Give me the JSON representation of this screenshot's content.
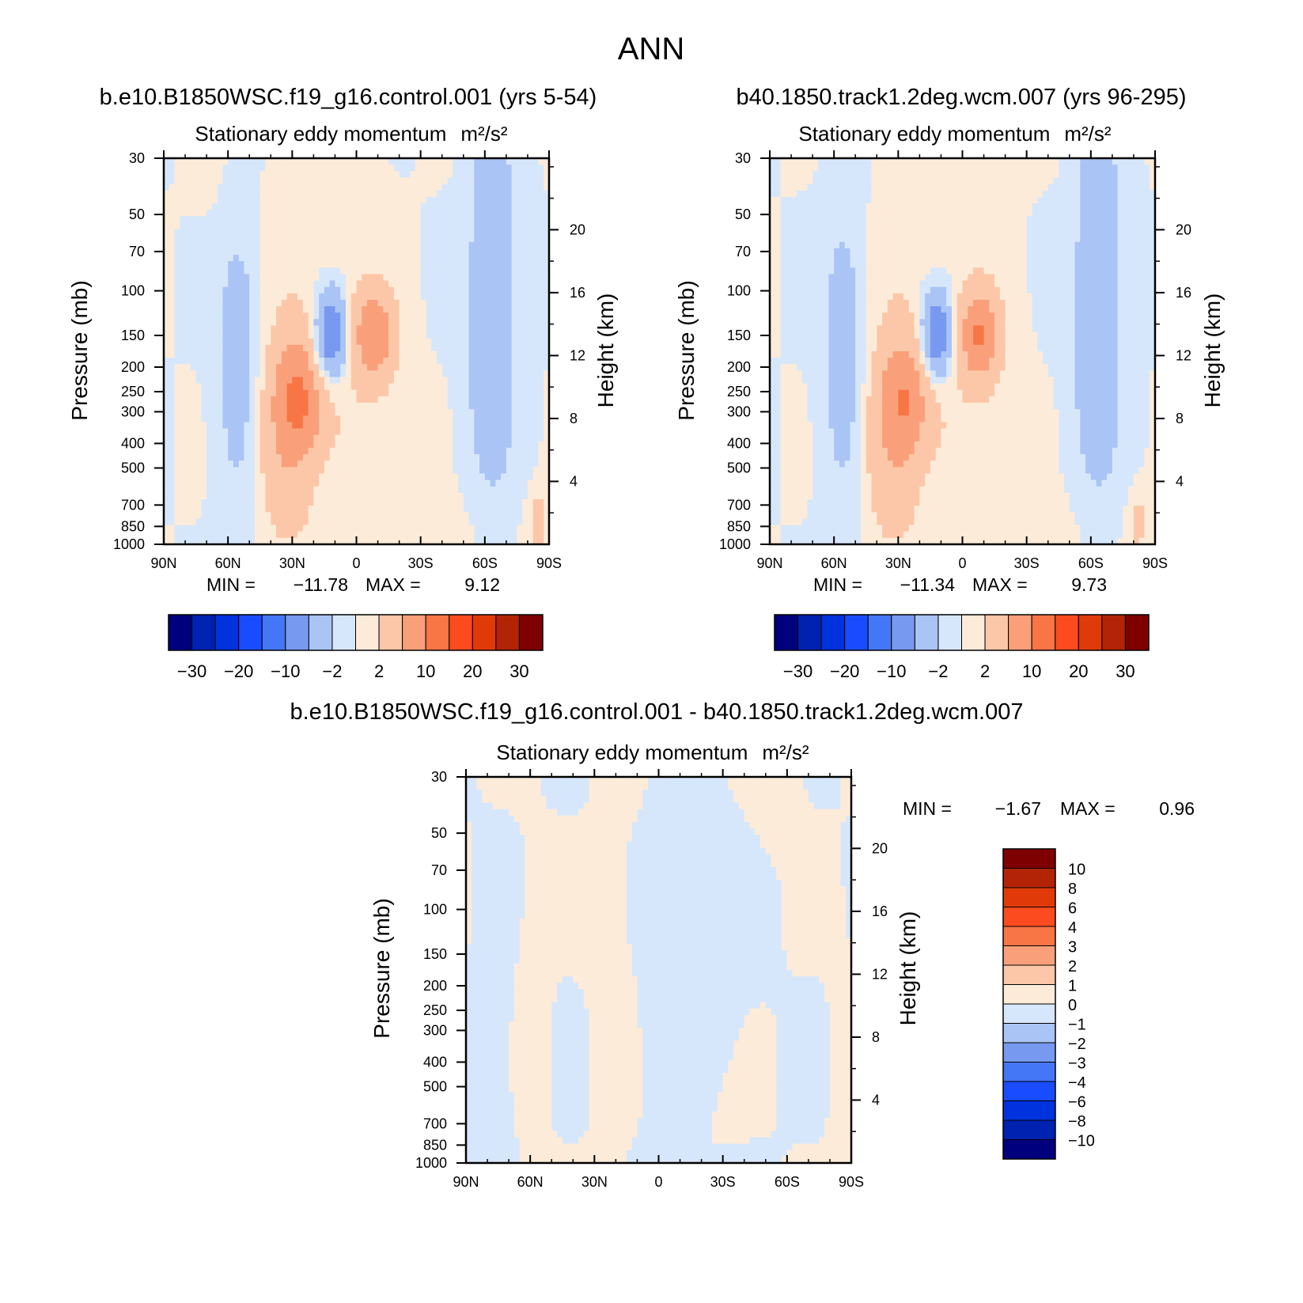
{
  "figure_title": "ANN",
  "colors": {
    "absolute_scale": [
      "#00007f",
      "#0022b0",
      "#0033dd",
      "#1a4cff",
      "#4477f5",
      "#7799f0",
      "#aac4f5",
      "#d7e7fb",
      "#fdebd9",
      "#fcc7a8",
      "#f9a07a",
      "#f87545",
      "#fc4b1e",
      "#e03a08",
      "#b22405",
      "#7f0000"
    ],
    "difference_scale": [
      "#00007f",
      "#0022b0",
      "#0033dd",
      "#1a4cff",
      "#4477f5",
      "#7799f0",
      "#aac4f5",
      "#d7e7fb",
      "#fdebd9",
      "#fcc7a8",
      "#f9a07a",
      "#f87545",
      "#fc4b1e",
      "#e03a08",
      "#b22405",
      "#7f0000"
    ]
  },
  "chart_data": [
    {
      "type": "heatmap",
      "name": "control",
      "case_title": "b.e10.B1850WSC.f19_g16.control.001 (yrs 5-54)",
      "title": "Stationary eddy momentum",
      "units": "m²/s²",
      "xlabel": "",
      "ylabel": "Pressure (mb)",
      "ylabel_right": "Height (km)",
      "x_ticks": [
        "90N",
        "60N",
        "30N",
        "0",
        "30S",
        "60S",
        "90S"
      ],
      "x_range": [
        90,
        -90
      ],
      "y_scale": "log",
      "y_range": [
        1000,
        30
      ],
      "y_ticks": [
        30,
        50,
        70,
        100,
        150,
        200,
        250,
        300,
        400,
        500,
        700,
        850,
        1000
      ],
      "right_ticks": [
        20,
        16,
        12,
        8,
        4
      ],
      "min_label": "MIN =",
      "min_value": "-11.78",
      "max_label": "MAX =",
      "max_value": "9.12",
      "min": -11.78,
      "max": 9.12,
      "colorbar_labels": [
        "-30",
        "-20",
        "-10",
        "-2",
        "2",
        "10",
        "20",
        "30"
      ],
      "features": [
        {
          "lat": 55,
          "p": 190,
          "value": -4,
          "sx": 7,
          "sl": 0.95
        },
        {
          "lat": 12,
          "p": 150,
          "value": -11.78,
          "sx": 5,
          "sl": 0.28
        },
        {
          "lat": -8,
          "p": 150,
          "value": 9.12,
          "sx": 7,
          "sl": 0.3
        },
        {
          "lat": 27,
          "p": 260,
          "value": 8,
          "sx": 9,
          "sl": 0.38
        },
        {
          "lat": 35,
          "p": 450,
          "value": 3,
          "sx": 10,
          "sl": 0.5
        },
        {
          "lat": 30,
          "p": 250,
          "value": 2,
          "sx": 10,
          "sl": 1.1
        },
        {
          "lat": 0,
          "p": 350,
          "value": 1.2,
          "sx": 15,
          "sl": 0.9
        },
        {
          "lat": -63,
          "p": 150,
          "value": -5,
          "sx": 8,
          "sl": 1.0
        },
        {
          "lat": -63,
          "p": 35,
          "value": -4,
          "sx": 5,
          "sl": 0.35
        },
        {
          "lat": -85,
          "p": 820,
          "value": 4,
          "sx": 3,
          "sl": 0.2
        },
        {
          "lat": 10,
          "p": 620,
          "value": -1.2,
          "sx": 7,
          "sl": 0.25
        },
        {
          "lat": 10,
          "p": 40,
          "value": 1.5,
          "sx": 12,
          "sl": 0.5
        },
        {
          "lat": 58,
          "p": 45,
          "value": 0.5,
          "sx": 10,
          "sl": 0.5
        },
        {
          "lat": -30,
          "p": 900,
          "value": 0.8,
          "sx": 30,
          "sl": 0.25
        }
      ]
    },
    {
      "type": "heatmap",
      "name": "wcm",
      "case_title": "b40.1850.track1.2deg.wcm.007 (yrs 96-295)",
      "title": "Stationary eddy momentum",
      "units": "m²/s²",
      "xlabel": "",
      "ylabel": "Pressure (mb)",
      "ylabel_right": "Height (km)",
      "x_ticks": [
        "90N",
        "60N",
        "30N",
        "0",
        "30S",
        "60S",
        "90S"
      ],
      "x_range": [
        90,
        -90
      ],
      "y_scale": "log",
      "y_range": [
        1000,
        30
      ],
      "y_ticks": [
        30,
        50,
        70,
        100,
        150,
        200,
        250,
        300,
        400,
        500,
        700,
        850,
        1000
      ],
      "right_ticks": [
        20,
        16,
        12,
        8,
        4
      ],
      "min_label": "MIN =",
      "min_value": "-11.34",
      "max_label": "MAX =",
      "max_value": "9.73",
      "min": -11.34,
      "max": 9.73,
      "colorbar_labels": [
        "-30",
        "-20",
        "-10",
        "-2",
        "2",
        "10",
        "20",
        "30"
      ],
      "features": [
        {
          "lat": 55,
          "p": 190,
          "value": -4,
          "sx": 7,
          "sl": 0.95
        },
        {
          "lat": 12,
          "p": 150,
          "value": -11.34,
          "sx": 5,
          "sl": 0.28
        },
        {
          "lat": -8,
          "p": 150,
          "value": 9.73,
          "sx": 7,
          "sl": 0.3
        },
        {
          "lat": 27,
          "p": 260,
          "value": 7,
          "sx": 9,
          "sl": 0.38
        },
        {
          "lat": 35,
          "p": 450,
          "value": 3,
          "sx": 10,
          "sl": 0.5
        },
        {
          "lat": 30,
          "p": 250,
          "value": 2,
          "sx": 10,
          "sl": 1.1
        },
        {
          "lat": 0,
          "p": 350,
          "value": 1.2,
          "sx": 15,
          "sl": 0.9
        },
        {
          "lat": -63,
          "p": 150,
          "value": -5,
          "sx": 8,
          "sl": 1.0
        },
        {
          "lat": -63,
          "p": 35,
          "value": -4,
          "sx": 5,
          "sl": 0.35
        },
        {
          "lat": -82,
          "p": 820,
          "value": 3,
          "sx": 3,
          "sl": 0.2
        },
        {
          "lat": 10,
          "p": 620,
          "value": -1.2,
          "sx": 7,
          "sl": 0.25
        },
        {
          "lat": 10,
          "p": 40,
          "value": 1.5,
          "sx": 14,
          "sl": 0.5
        },
        {
          "lat": -30,
          "p": 900,
          "value": 0.8,
          "sx": 30,
          "sl": 0.25
        }
      ]
    },
    {
      "type": "heatmap",
      "name": "difference",
      "case_title": "b.e10.B1850WSC.f19_g16.control.001 - b40.1850.track1.2deg.wcm.007",
      "title": "Stationary eddy momentum",
      "units": "m²/s²",
      "xlabel": "",
      "ylabel": "Pressure (mb)",
      "ylabel_right": "Height (km)",
      "x_ticks": [
        "90N",
        "60N",
        "30N",
        "0",
        "30S",
        "60S",
        "90S"
      ],
      "x_range": [
        90,
        -90
      ],
      "y_scale": "log",
      "y_range": [
        1000,
        30
      ],
      "y_ticks": [
        30,
        50,
        70,
        100,
        150,
        200,
        250,
        300,
        400,
        500,
        700,
        850,
        1000
      ],
      "right_ticks": [
        20,
        16,
        12,
        8,
        4
      ],
      "min_label": "MIN =",
      "min_value": "-1.67",
      "max_label": "MAX =",
      "max_value": "0.96",
      "min": -1.67,
      "max": 0.96,
      "colorbar_labels": [
        "10",
        "8",
        "6",
        "4",
        "3",
        "2",
        "1",
        "0",
        "-1",
        "-2",
        "-3",
        "-4",
        "-6",
        "-8",
        "-10"
      ],
      "features": [
        {
          "lat": -10,
          "p": 250,
          "value": -0.6,
          "sx": 20,
          "sl": 1.2
        },
        {
          "lat": 20,
          "p": 200,
          "value": 0.6,
          "sx": 8,
          "sl": 1.2
        },
        {
          "lat": 60,
          "p": 300,
          "value": 0.5,
          "sx": 6,
          "sl": 1.0
        },
        {
          "lat": 75,
          "p": 400,
          "value": -0.5,
          "sx": 8,
          "sl": 1.0
        },
        {
          "lat": -55,
          "p": 35,
          "value": 0.5,
          "sx": 8,
          "sl": 0.35
        },
        {
          "lat": -20,
          "p": 600,
          "value": 0.4,
          "sx": 14,
          "sl": 0.4
        },
        {
          "lat": -85,
          "p": 400,
          "value": 0.3,
          "sx": 4,
          "sl": 0.8
        }
      ]
    }
  ]
}
